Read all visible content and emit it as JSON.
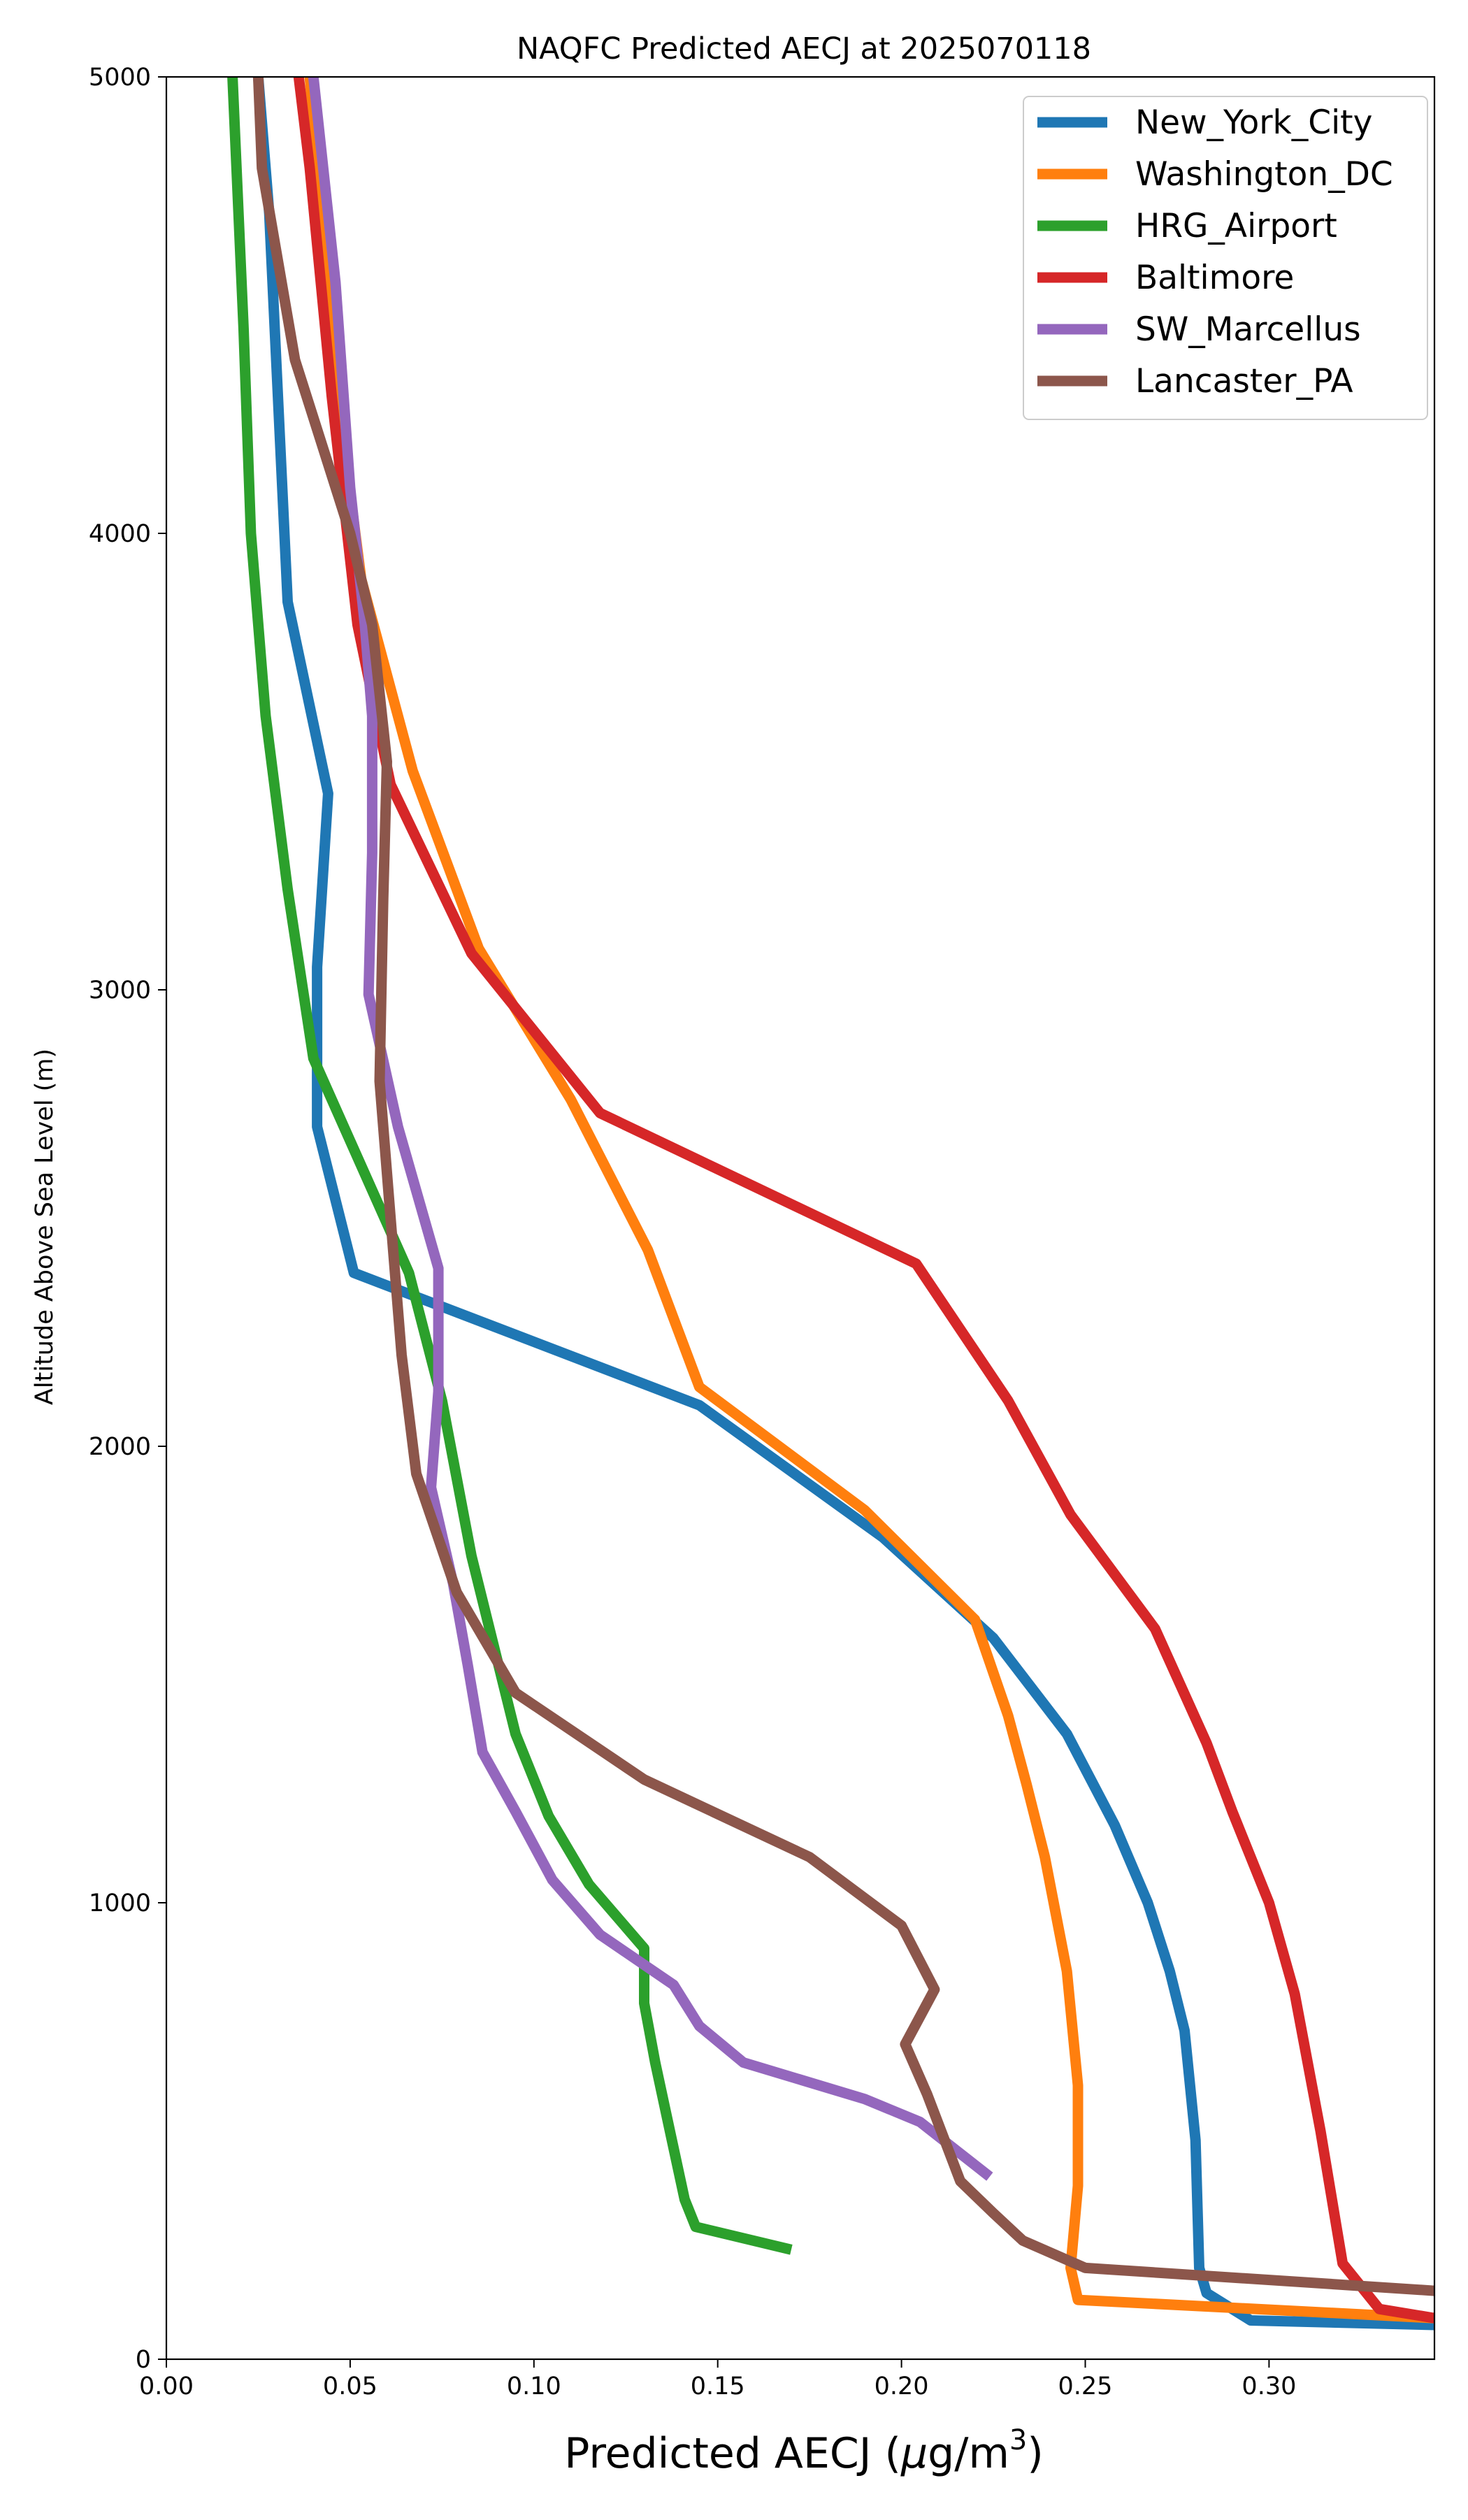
{
  "chart_data": {
    "type": "line",
    "title": "NAQFC Predicted AECJ at 2025070118",
    "xlabel_main": "Predicted AECJ (",
    "xlabel_mu": "μ",
    "xlabel_unit": "g/m",
    "xlabel_sup": "3",
    "xlabel_close": ")",
    "ylabel": "Altitude Above Sea Level (m)",
    "xlim": [
      0.0,
      0.345
    ],
    "ylim": [
      0,
      5000
    ],
    "xticks": [
      "0.00",
      "0.05",
      "0.10",
      "0.15",
      "0.20",
      "0.25",
      "0.30"
    ],
    "yticks": [
      "0",
      "1000",
      "2000",
      "3000",
      "4000",
      "5000"
    ],
    "grid": false,
    "legend_position": "top-right",
    "series": [
      {
        "name": "New_York_City",
        "color": "#1f77b4",
        "points": [
          [
            0.345,
            75
          ],
          [
            0.295,
            85
          ],
          [
            0.283,
            145
          ],
          [
            0.281,
            200
          ],
          [
            0.28,
            480
          ],
          [
            0.277,
            720
          ],
          [
            0.273,
            850
          ],
          [
            0.267,
            1000
          ],
          [
            0.258,
            1170
          ],
          [
            0.245,
            1370
          ],
          [
            0.225,
            1580
          ],
          [
            0.195,
            1800
          ],
          [
            0.145,
            2090
          ],
          [
            0.051,
            2380
          ],
          [
            0.041,
            2700
          ],
          [
            0.041,
            3050
          ],
          [
            0.044,
            3430
          ],
          [
            0.033,
            3850
          ],
          [
            0.028,
            4700
          ],
          [
            0.025,
            5000
          ]
        ]
      },
      {
        "name": "Washington_DC",
        "color": "#ff7f0e",
        "points": [
          [
            0.345,
            90
          ],
          [
            0.248,
            130
          ],
          [
            0.246,
            200
          ],
          [
            0.248,
            380
          ],
          [
            0.248,
            600
          ],
          [
            0.245,
            850
          ],
          [
            0.239,
            1100
          ],
          [
            0.234,
            1260
          ],
          [
            0.229,
            1410
          ],
          [
            0.22,
            1620
          ],
          [
            0.19,
            1860
          ],
          [
            0.145,
            2130
          ],
          [
            0.131,
            2430
          ],
          [
            0.11,
            2760
          ],
          [
            0.085,
            3090
          ],
          [
            0.067,
            3480
          ],
          [
            0.053,
            3900
          ],
          [
            0.045,
            4400
          ],
          [
            0.039,
            5000
          ]
        ]
      },
      {
        "name": "HRG_Airport",
        "color": "#2ca02c",
        "points": [
          [
            0.17,
            240
          ],
          [
            0.144,
            290
          ],
          [
            0.141,
            350
          ],
          [
            0.137,
            500
          ],
          [
            0.133,
            650
          ],
          [
            0.13,
            780
          ],
          [
            0.13,
            900
          ],
          [
            0.115,
            1040
          ],
          [
            0.104,
            1190
          ],
          [
            0.095,
            1370
          ],
          [
            0.083,
            1760
          ],
          [
            0.075,
            2100
          ],
          [
            0.066,
            2380
          ],
          [
            0.04,
            2850
          ],
          [
            0.033,
            3220
          ],
          [
            0.027,
            3600
          ],
          [
            0.023,
            4000
          ],
          [
            0.021,
            4450
          ],
          [
            0.018,
            5000
          ]
        ]
      },
      {
        "name": "Baltimore",
        "color": "#d62728",
        "points": [
          [
            0.345,
            90
          ],
          [
            0.33,
            110
          ],
          [
            0.32,
            210
          ],
          [
            0.314,
            500
          ],
          [
            0.307,
            800
          ],
          [
            0.3,
            1000
          ],
          [
            0.29,
            1200
          ],
          [
            0.283,
            1350
          ],
          [
            0.269,
            1600
          ],
          [
            0.246,
            1850
          ],
          [
            0.229,
            2100
          ],
          [
            0.204,
            2400
          ],
          [
            0.118,
            2730
          ],
          [
            0.083,
            3080
          ],
          [
            0.061,
            3450
          ],
          [
            0.052,
            3800
          ],
          [
            0.045,
            4300
          ],
          [
            0.039,
            4800
          ],
          [
            0.036,
            5000
          ]
        ]
      },
      {
        "name": "SW_Marcellus",
        "color": "#9467bd",
        "points": [
          [
            0.224,
            400
          ],
          [
            0.205,
            520
          ],
          [
            0.19,
            570
          ],
          [
            0.157,
            650
          ],
          [
            0.145,
            730
          ],
          [
            0.138,
            820
          ],
          [
            0.118,
            930
          ],
          [
            0.105,
            1050
          ],
          [
            0.095,
            1200
          ],
          [
            0.086,
            1330
          ],
          [
            0.082,
            1520
          ],
          [
            0.078,
            1700
          ],
          [
            0.072,
            1910
          ],
          [
            0.074,
            2120
          ],
          [
            0.074,
            2390
          ],
          [
            0.063,
            2700
          ],
          [
            0.055,
            2990
          ],
          [
            0.056,
            3300
          ],
          [
            0.056,
            3600
          ],
          [
            0.054,
            3800
          ],
          [
            0.05,
            4100
          ],
          [
            0.046,
            4550
          ],
          [
            0.04,
            5000
          ]
        ]
      },
      {
        "name": "Lancaster_PA",
        "color": "#8c564b",
        "points": [
          [
            0.345,
            150
          ],
          [
            0.25,
            200
          ],
          [
            0.233,
            260
          ],
          [
            0.225,
            320
          ],
          [
            0.216,
            390
          ],
          [
            0.207,
            580
          ],
          [
            0.201,
            690
          ],
          [
            0.209,
            810
          ],
          [
            0.2,
            950
          ],
          [
            0.175,
            1100
          ],
          [
            0.13,
            1270
          ],
          [
            0.095,
            1460
          ],
          [
            0.079,
            1680
          ],
          [
            0.068,
            1940
          ],
          [
            0.064,
            2200
          ],
          [
            0.061,
            2500
          ],
          [
            0.058,
            2800
          ],
          [
            0.059,
            3200
          ],
          [
            0.06,
            3500
          ],
          [
            0.056,
            3800
          ],
          [
            0.05,
            4000
          ],
          [
            0.035,
            4380
          ],
          [
            0.026,
            4800
          ],
          [
            0.025,
            5000
          ]
        ]
      }
    ]
  }
}
